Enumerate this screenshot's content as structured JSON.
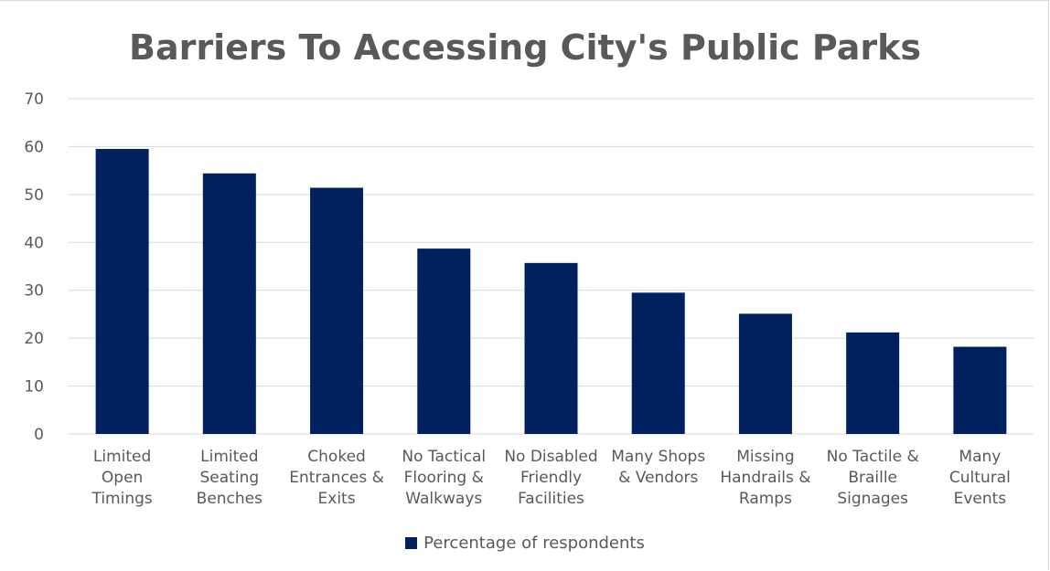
{
  "chart_data": {
    "type": "bar",
    "title": "Barriers To Accessing City's Public Parks",
    "xlabel": "",
    "ylabel": "",
    "ylim": [
      0,
      70
    ],
    "yticks": [
      0,
      10,
      20,
      30,
      40,
      50,
      60,
      70
    ],
    "grid": true,
    "legend_position": "bottom",
    "categories": [
      [
        "Limited",
        "Open",
        "Timings"
      ],
      [
        "Limited",
        "Seating",
        "Benches"
      ],
      [
        "Choked",
        "Entrances &",
        "Exits"
      ],
      [
        "No Tactical",
        "Flooring &",
        "Walkways"
      ],
      [
        "No Disabled",
        "Friendly",
        "Facilities"
      ],
      [
        "Many Shops",
        "& Vendors"
      ],
      [
        "Missing",
        "Handrails &",
        "Ramps"
      ],
      [
        "No Tactile &",
        "Braille",
        "Signages"
      ],
      [
        "Many",
        "Cultural",
        "Events"
      ]
    ],
    "series": [
      {
        "name": "Percentage of respondents",
        "color": "#002060",
        "values": [
          59.5,
          54.4,
          51.4,
          38.7,
          35.7,
          29.5,
          25.1,
          21.2,
          18.2
        ]
      }
    ]
  }
}
